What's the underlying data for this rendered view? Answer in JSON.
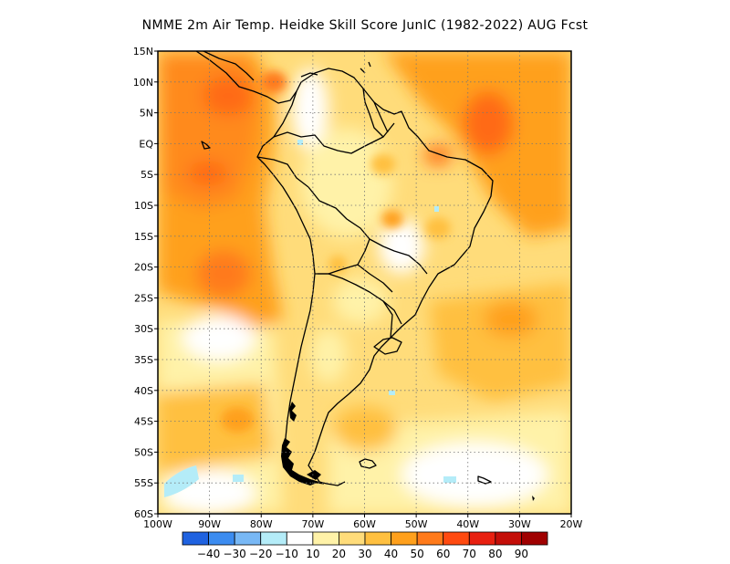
{
  "title": "NMME  2m Air Temp. Heidke Skill Score JunIC (1982-2022) AUG Fcst",
  "map": {
    "lon_range": [
      -100,
      -20
    ],
    "lat_range": [
      -60,
      15
    ],
    "lat_ticks": [
      {
        "value": 15,
        "label": "15N"
      },
      {
        "value": 10,
        "label": "10N"
      },
      {
        "value": 5,
        "label": "5N"
      },
      {
        "value": 0,
        "label": "EQ"
      },
      {
        "value": -5,
        "label": "5S"
      },
      {
        "value": -10,
        "label": "10S"
      },
      {
        "value": -15,
        "label": "15S"
      },
      {
        "value": -20,
        "label": "20S"
      },
      {
        "value": -25,
        "label": "25S"
      },
      {
        "value": -30,
        "label": "30S"
      },
      {
        "value": -35,
        "label": "35S"
      },
      {
        "value": -40,
        "label": "40S"
      },
      {
        "value": -45,
        "label": "45S"
      },
      {
        "value": -50,
        "label": "50S"
      },
      {
        "value": -55,
        "label": "55S"
      },
      {
        "value": -60,
        "label": "60S"
      }
    ],
    "lon_ticks": [
      {
        "value": -100,
        "label": "100W"
      },
      {
        "value": -90,
        "label": "90W"
      },
      {
        "value": -80,
        "label": "80W"
      },
      {
        "value": -70,
        "label": "70W"
      },
      {
        "value": -60,
        "label": "60W"
      },
      {
        "value": -50,
        "label": "50W"
      },
      {
        "value": -40,
        "label": "40W"
      },
      {
        "value": -30,
        "label": "30W"
      },
      {
        "value": -20,
        "label": "20W"
      }
    ],
    "gridlines": "dotted"
  },
  "colorbar": {
    "colors": [
      "#1f62e0",
      "#3c8cf0",
      "#78b8f5",
      "#b4ecf8",
      "#ffffff",
      "#fff2a8",
      "#ffdc7a",
      "#ffc040",
      "#ffa01c",
      "#ff7a1a",
      "#ff4a10",
      "#e82010",
      "#c40e08",
      "#a00000"
    ],
    "labels": [
      "-40",
      "-30",
      "-20",
      "-10",
      "10",
      "20",
      "30",
      "40",
      "50",
      "60",
      "70",
      "80",
      "90"
    ]
  },
  "colors": {
    "land_outline": "#000000",
    "background": "#ffffff"
  }
}
